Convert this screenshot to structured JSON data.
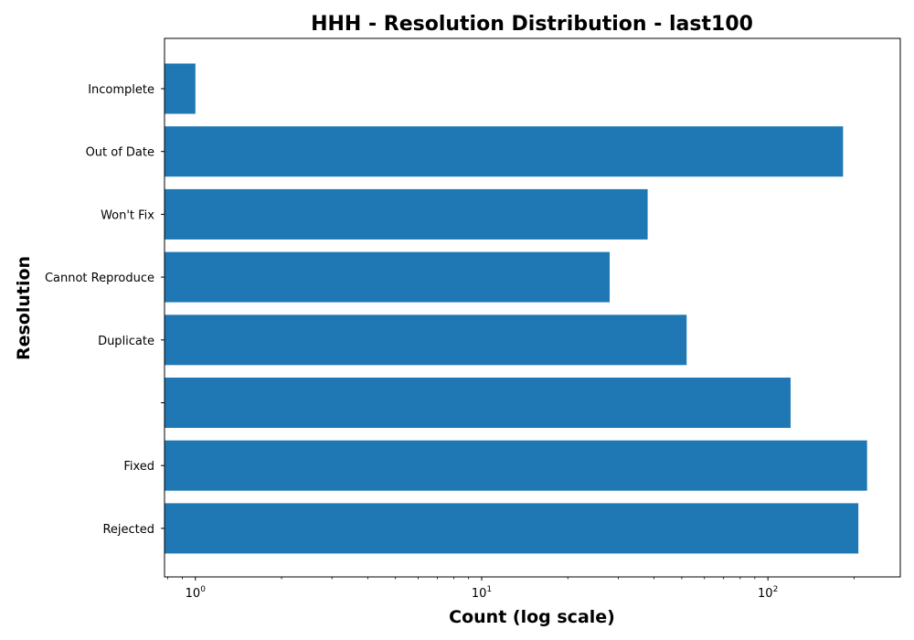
{
  "chart_data": {
    "type": "bar",
    "orientation": "horizontal",
    "title": "HHH - Resolution Distribution - last100",
    "xlabel": "Count (log scale)",
    "ylabel": "Resolution",
    "xscale": "log",
    "xlim": [
      0.78,
      290
    ],
    "categories": [
      "Incomplete",
      "Out of Date",
      "Won't Fix",
      "Cannot Reproduce",
      "Duplicate",
      "",
      "Fixed",
      "Rejected"
    ],
    "values": [
      1,
      183,
      38,
      28,
      52,
      120,
      222,
      207
    ],
    "x_ticks": [
      {
        "base": "10",
        "exp": "0",
        "value": 1
      },
      {
        "base": "10",
        "exp": "1",
        "value": 10
      },
      {
        "base": "10",
        "exp": "2",
        "value": 100
      }
    ],
    "bar_color": "#1f77b4",
    "grid": false,
    "legend": "none"
  }
}
